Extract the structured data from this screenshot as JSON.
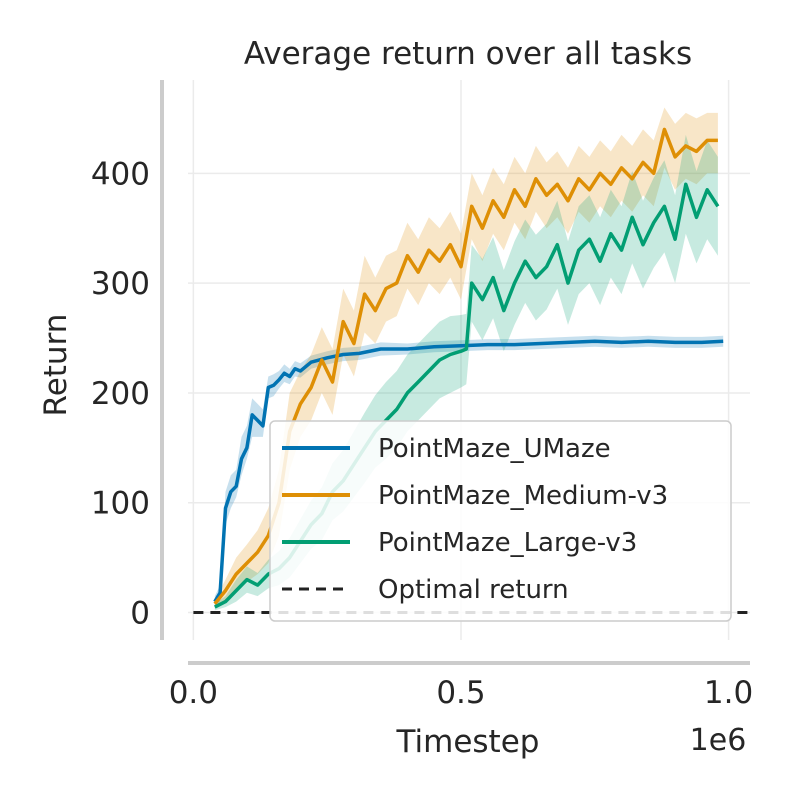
{
  "chart_data": {
    "type": "line",
    "title": "Average return over all tasks",
    "xlabel": "Timestep",
    "ylabel": "Return",
    "x_offset_label": "1e6",
    "xlim": [
      -0.01,
      1.04
    ],
    "ylim": [
      -25,
      485
    ],
    "xticks": [
      0.0,
      0.5,
      1.0
    ],
    "xtick_labels": [
      "0.0",
      "0.5",
      "1.0"
    ],
    "yticks": [
      0,
      100,
      200,
      300,
      400
    ],
    "ytick_labels": [
      "0",
      "100",
      "200",
      "300",
      "400"
    ],
    "grid": true,
    "legend_position": "lower-right",
    "colors": {
      "PointMaze_UMaze": "#0173b2",
      "PointMaze_Medium-v3": "#de8f05",
      "PointMaze_Large-v3": "#029e73",
      "Optimal return": "#222222"
    },
    "series": [
      {
        "name": "PointMaze_UMaze",
        "x": [
          0.04,
          0.05,
          0.06,
          0.07,
          0.08,
          0.09,
          0.1,
          0.11,
          0.12,
          0.13,
          0.14,
          0.15,
          0.16,
          0.17,
          0.18,
          0.19,
          0.2,
          0.22,
          0.25,
          0.28,
          0.31,
          0.35,
          0.4,
          0.45,
          0.5,
          0.55,
          0.6,
          0.65,
          0.7,
          0.75,
          0.8,
          0.85,
          0.9,
          0.95,
          0.99
        ],
        "y": [
          10,
          18,
          95,
          110,
          115,
          140,
          150,
          180,
          175,
          170,
          205,
          207,
          212,
          218,
          215,
          222,
          220,
          228,
          232,
          235,
          236,
          240,
          240,
          242,
          243,
          244,
          244,
          245,
          246,
          247,
          246,
          247,
          246,
          246,
          247
        ],
        "lower": [
          5,
          10,
          80,
          95,
          105,
          125,
          140,
          160,
          160,
          160,
          195,
          197,
          204,
          210,
          208,
          215,
          214,
          222,
          226,
          229,
          230,
          234,
          235,
          237,
          238,
          239,
          239,
          240,
          241,
          242,
          241,
          242,
          241,
          241,
          242
        ],
        "upper": [
          15,
          25,
          110,
          125,
          130,
          160,
          170,
          195,
          190,
          185,
          215,
          217,
          220,
          226,
          222,
          229,
          227,
          234,
          238,
          241,
          242,
          246,
          245,
          247,
          248,
          249,
          249,
          250,
          251,
          252,
          251,
          252,
          251,
          251,
          252
        ]
      },
      {
        "name": "PointMaze_Medium-v3",
        "x": [
          0.04,
          0.06,
          0.08,
          0.1,
          0.12,
          0.14,
          0.16,
          0.18,
          0.2,
          0.22,
          0.24,
          0.26,
          0.28,
          0.3,
          0.32,
          0.34,
          0.36,
          0.38,
          0.4,
          0.42,
          0.44,
          0.46,
          0.48,
          0.5,
          0.52,
          0.54,
          0.56,
          0.58,
          0.6,
          0.62,
          0.64,
          0.66,
          0.68,
          0.7,
          0.72,
          0.74,
          0.76,
          0.78,
          0.8,
          0.82,
          0.84,
          0.86,
          0.88,
          0.9,
          0.92,
          0.94,
          0.96,
          0.98
        ],
        "y": [
          8,
          20,
          35,
          45,
          55,
          70,
          100,
          165,
          190,
          205,
          230,
          210,
          265,
          245,
          290,
          275,
          295,
          300,
          325,
          310,
          330,
          320,
          335,
          315,
          370,
          350,
          375,
          360,
          385,
          370,
          395,
          380,
          390,
          375,
          395,
          385,
          400,
          390,
          405,
          395,
          410,
          400,
          440,
          415,
          425,
          420,
          430,
          430
        ],
        "lower": [
          4,
          10,
          20,
          28,
          35,
          45,
          70,
          130,
          160,
          175,
          200,
          180,
          235,
          215,
          255,
          245,
          265,
          270,
          295,
          280,
          300,
          290,
          305,
          285,
          340,
          320,
          345,
          330,
          355,
          340,
          365,
          350,
          360,
          345,
          365,
          355,
          370,
          360,
          375,
          365,
          380,
          370,
          405,
          385,
          395,
          390,
          400,
          400
        ],
        "upper": [
          12,
          30,
          50,
          62,
          75,
          95,
          130,
          200,
          220,
          235,
          260,
          240,
          295,
          275,
          325,
          305,
          325,
          330,
          355,
          340,
          360,
          350,
          365,
          345,
          400,
          380,
          405,
          390,
          415,
          400,
          425,
          410,
          420,
          405,
          425,
          415,
          430,
          420,
          435,
          425,
          440,
          430,
          460,
          445,
          455,
          450,
          455,
          455
        ]
      },
      {
        "name": "PointMaze_Large-v3",
        "x": [
          0.04,
          0.06,
          0.08,
          0.1,
          0.12,
          0.14,
          0.16,
          0.18,
          0.2,
          0.22,
          0.24,
          0.26,
          0.28,
          0.3,
          0.32,
          0.34,
          0.36,
          0.38,
          0.4,
          0.42,
          0.44,
          0.46,
          0.48,
          0.5,
          0.51,
          0.52,
          0.54,
          0.56,
          0.58,
          0.6,
          0.62,
          0.64,
          0.66,
          0.68,
          0.7,
          0.72,
          0.74,
          0.76,
          0.78,
          0.8,
          0.82,
          0.84,
          0.86,
          0.88,
          0.9,
          0.92,
          0.94,
          0.96,
          0.98
        ],
        "y": [
          5,
          10,
          20,
          30,
          25,
          35,
          40,
          50,
          65,
          80,
          90,
          110,
          120,
          135,
          150,
          165,
          175,
          185,
          200,
          210,
          220,
          230,
          235,
          238,
          240,
          300,
          285,
          305,
          275,
          300,
          320,
          305,
          315,
          335,
          300,
          330,
          340,
          320,
          345,
          330,
          360,
          335,
          355,
          370,
          340,
          390,
          360,
          385,
          370
        ],
        "lower": [
          2,
          5,
          10,
          18,
          15,
          22,
          25,
          32,
          45,
          58,
          66,
          84,
          92,
          105,
          118,
          132,
          140,
          150,
          165,
          175,
          185,
          195,
          200,
          205,
          208,
          265,
          248,
          268,
          238,
          262,
          282,
          266,
          276,
          295,
          262,
          290,
          300,
          280,
          305,
          290,
          318,
          295,
          314,
          328,
          300,
          345,
          318,
          340,
          325
        ],
        "upper": [
          8,
          15,
          30,
          42,
          36,
          48,
          56,
          68,
          85,
          102,
          114,
          136,
          148,
          165,
          182,
          198,
          210,
          220,
          235,
          245,
          255,
          265,
          270,
          271,
          272,
          335,
          322,
          342,
          312,
          338,
          358,
          344,
          354,
          375,
          338,
          370,
          380,
          360,
          385,
          370,
          402,
          375,
          396,
          412,
          380,
          435,
          402,
          430,
          415
        ]
      },
      {
        "name": "Optimal return",
        "style": "dashed",
        "x": [
          0.0,
          1.04
        ],
        "y": [
          0,
          0
        ]
      }
    ]
  }
}
